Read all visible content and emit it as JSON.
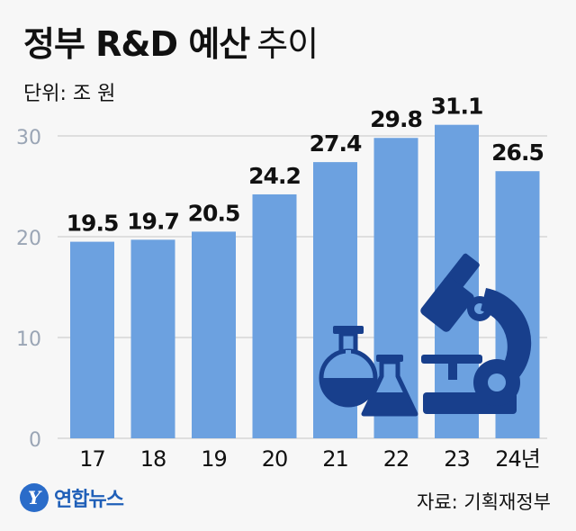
{
  "header": {
    "title_bold": "정부 R&D 예산",
    "title_light": "추이",
    "unit": "단위: 조 원"
  },
  "footer": {
    "logo_mark": "Y",
    "logo_text": "연합뉴스",
    "source": "자료: 기획재정부"
  },
  "colors": {
    "bar": "#6ca1e0",
    "icon": "#183f8c",
    "grid": "#d5d5d5",
    "axis_text": "#9aa5b5"
  },
  "icons": [
    "flask-icon",
    "erlenmeyer-flask-icon",
    "microscope-icon"
  ],
  "chart_data": {
    "type": "bar",
    "title": "정부 R&D 예산 추이",
    "ylabel": "단위: 조 원",
    "categories": [
      "17",
      "18",
      "19",
      "20",
      "21",
      "22",
      "23",
      "24년"
    ],
    "values": [
      19.5,
      19.7,
      20.5,
      24.2,
      27.4,
      29.8,
      31.1,
      26.5
    ],
    "value_labels": [
      "19.5",
      "19.7",
      "20.5",
      "24.2",
      "27.4",
      "29.8",
      "31.1",
      "26.5"
    ],
    "yticks": [
      0,
      10,
      20,
      30
    ],
    "ylim": [
      0,
      30
    ],
    "grid": true
  }
}
